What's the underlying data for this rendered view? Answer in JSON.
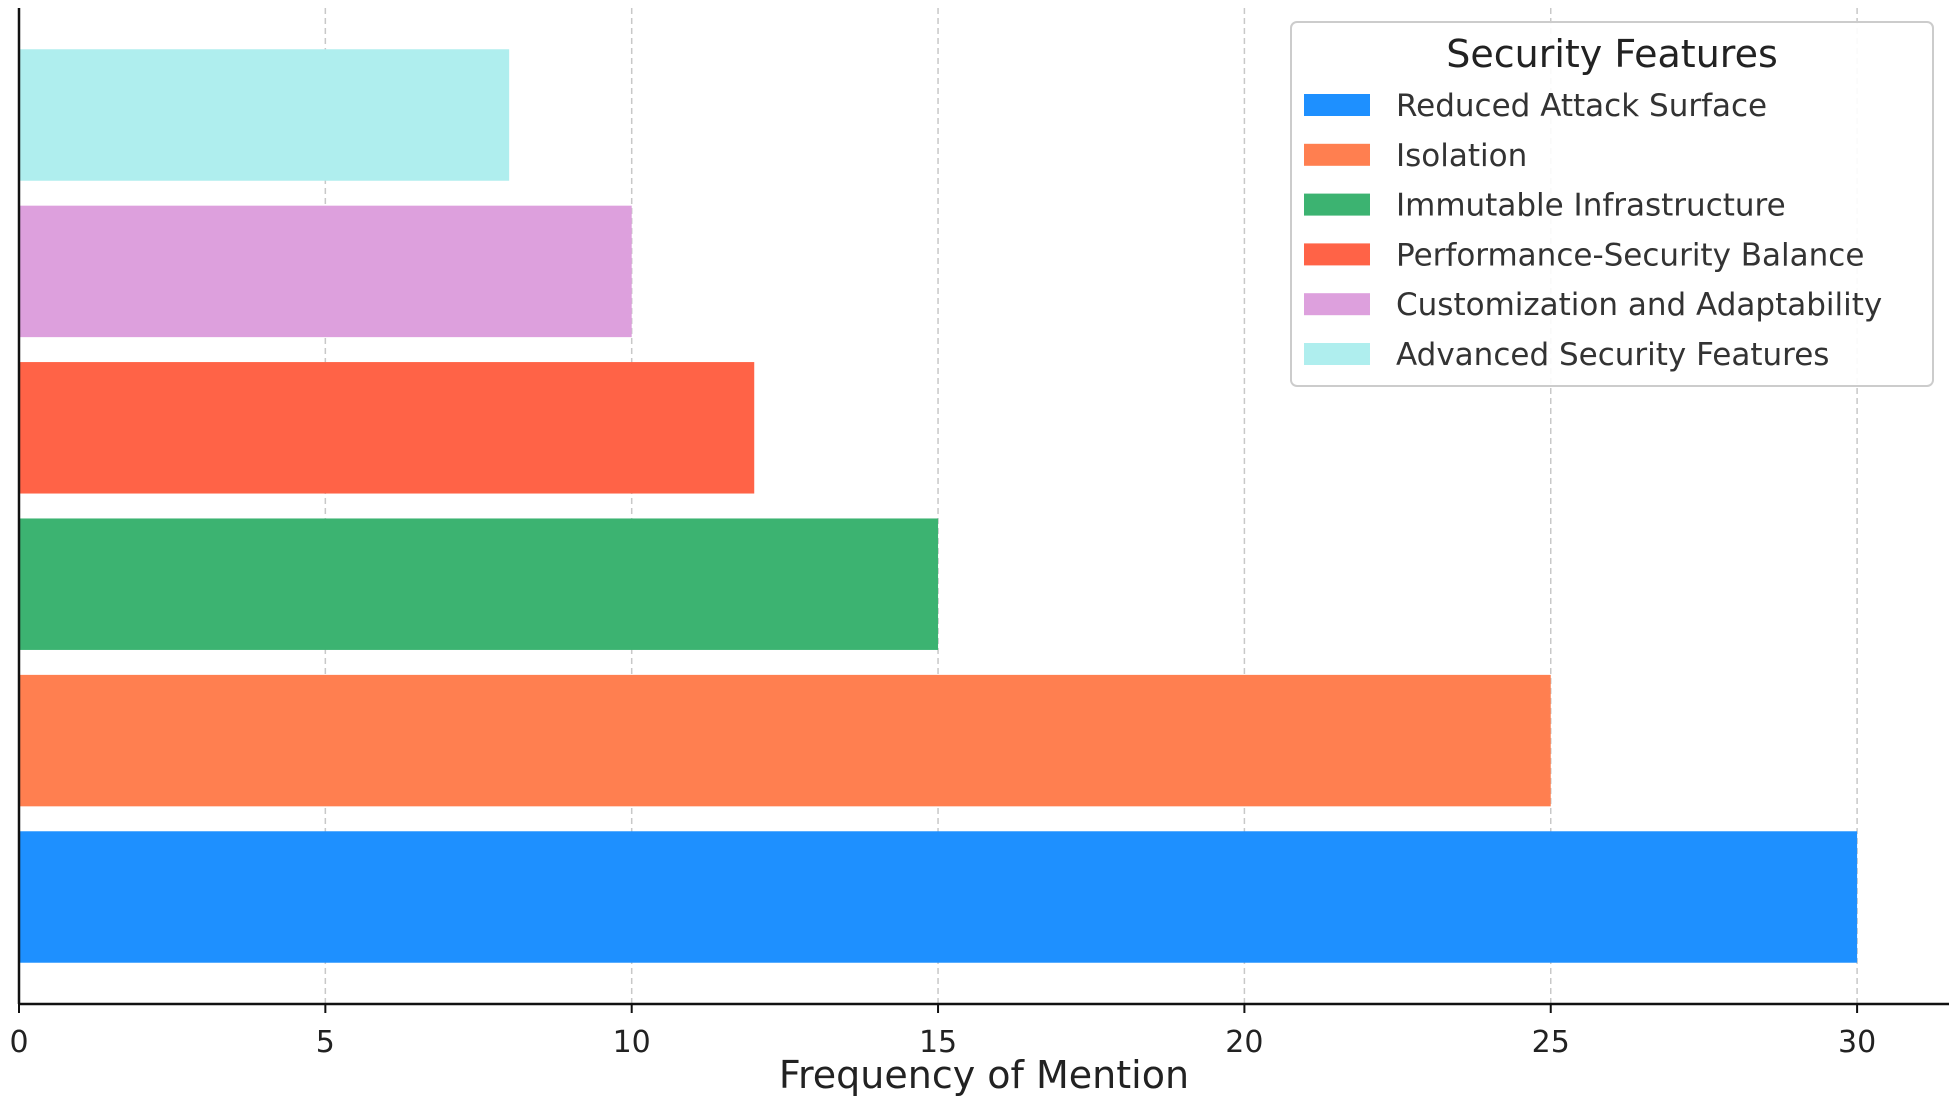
{
  "chart_data": {
    "type": "bar",
    "orientation": "horizontal",
    "title": "",
    "xlabel": "Frequency of Mention",
    "ylabel": "",
    "xlim": [
      0,
      31.5
    ],
    "xticks": [
      0,
      5,
      10,
      15,
      20,
      25,
      30
    ],
    "grid": "x-dashed",
    "legend_title": "Security Features",
    "legend_position": "top-right",
    "categories": [
      "Reduced Attack Surface",
      "Isolation",
      "Immutable Infrastructure",
      "Performance-Security Balance",
      "Customization and Adaptability",
      "Advanced Security Features"
    ],
    "values": [
      30,
      25,
      15,
      12,
      10,
      8
    ],
    "colors": [
      "#1e90ff",
      "#ff7f50",
      "#3cb371",
      "#ff6347",
      "#dda0dd",
      "#afeeee"
    ]
  }
}
